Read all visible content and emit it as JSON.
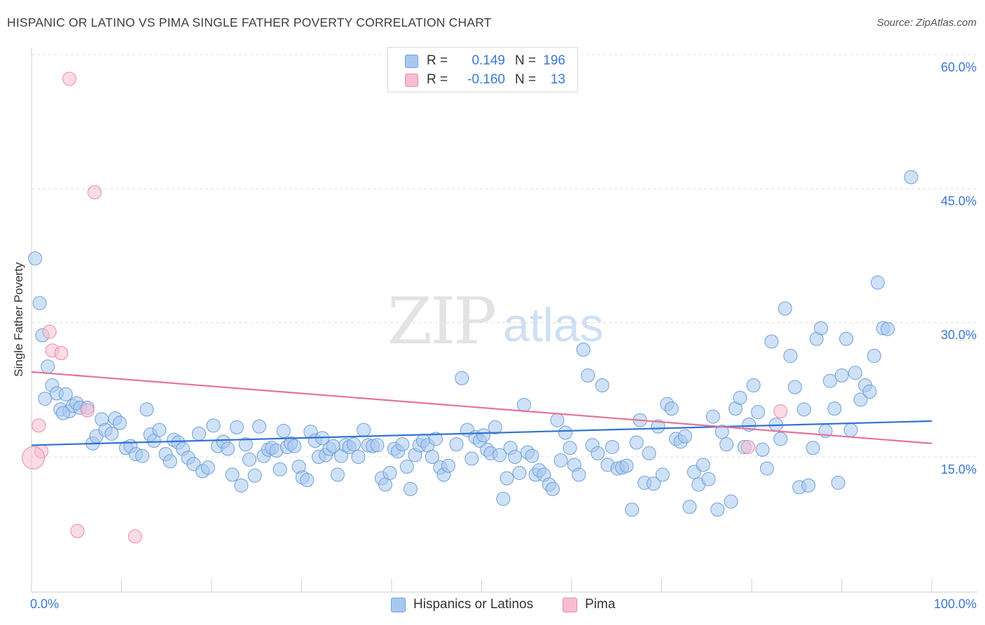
{
  "title": "HISPANIC OR LATINO VS PIMA SINGLE FATHER POVERTY CORRELATION CHART",
  "source": "Source: ZipAtlas.com",
  "watermark": {
    "zip": "ZIP",
    "atlas": "atlas"
  },
  "legend_top": [
    {
      "r_label": "R =",
      "r_value": "0.149",
      "n_label": "N =",
      "n_value": "196",
      "color": "#a8c8f0",
      "border": "#6f9fd8"
    },
    {
      "r_label": "R =",
      "r_value": "-0.160",
      "n_label": "N =",
      "n_value": "13",
      "color": "#f8bdd0",
      "border": "#e88aab"
    }
  ],
  "legend_bottom": [
    {
      "label": "Hispanics or Latinos",
      "color": "#a8c8f0",
      "border": "#6f9fd8"
    },
    {
      "label": "Pima",
      "color": "#f8bdd0",
      "border": "#e88aab"
    }
  ],
  "chart_data": {
    "type": "scatter",
    "title": "HISPANIC OR LATINO VS PIMA SINGLE FATHER POVERTY CORRELATION CHART",
    "xlabel": "",
    "ylabel": "Single Father Poverty",
    "xlim": [
      0,
      100
    ],
    "ylim": [
      0,
      61
    ],
    "x_tick_labels": [
      "0.0%",
      "100.0%"
    ],
    "y_ticks": [
      15,
      30,
      45,
      60
    ],
    "y_tick_labels": [
      "15.0%",
      "30.0%",
      "45.0%",
      "60.0%"
    ],
    "grid": "horizontal dashed",
    "legend_position": "top-center",
    "series": [
      {
        "name": "Hispanics or Latinos",
        "color": "#a8c8f0",
        "edge": "#6f9fd8",
        "trend": {
          "color": "#2f73d0",
          "y_at_x0": 16.3,
          "y_at_x100": 19.0
        },
        "points": [
          [
            0.4,
            37.2
          ],
          [
            0.9,
            32.2
          ],
          [
            1.2,
            28.6
          ],
          [
            1.8,
            25.1
          ],
          [
            2.3,
            23.0
          ],
          [
            2.8,
            22.1
          ],
          [
            3.2,
            20.3
          ],
          [
            3.8,
            22.0
          ],
          [
            4.2,
            20.1
          ],
          [
            4.6,
            20.7
          ],
          [
            5.0,
            21.0
          ],
          [
            5.4,
            20.5
          ],
          [
            6.8,
            16.5
          ],
          [
            7.2,
            17.3
          ],
          [
            7.8,
            19.2
          ],
          [
            8.2,
            18.0
          ],
          [
            8.9,
            17.6
          ],
          [
            9.3,
            19.3
          ],
          [
            9.8,
            18.8
          ],
          [
            10.5,
            16.0
          ],
          [
            11.0,
            16.2
          ],
          [
            11.6,
            15.3
          ],
          [
            12.3,
            15.1
          ],
          [
            12.8,
            20.3
          ],
          [
            13.2,
            17.5
          ],
          [
            13.6,
            16.8
          ],
          [
            14.2,
            18.0
          ],
          [
            14.9,
            15.3
          ],
          [
            15.4,
            14.5
          ],
          [
            15.8,
            16.9
          ],
          [
            16.3,
            16.6
          ],
          [
            16.8,
            15.9
          ],
          [
            17.4,
            14.9
          ],
          [
            18.0,
            14.2
          ],
          [
            18.6,
            17.6
          ],
          [
            19.0,
            13.4
          ],
          [
            19.6,
            13.8
          ],
          [
            20.2,
            18.5
          ],
          [
            20.7,
            16.2
          ],
          [
            21.3,
            16.7
          ],
          [
            21.8,
            15.9
          ],
          [
            22.3,
            13.0
          ],
          [
            22.8,
            18.3
          ],
          [
            23.3,
            11.8
          ],
          [
            23.8,
            16.4
          ],
          [
            24.2,
            14.7
          ],
          [
            24.8,
            12.9
          ],
          [
            25.3,
            18.4
          ],
          [
            25.8,
            15.1
          ],
          [
            26.3,
            15.8
          ],
          [
            26.7,
            16.0
          ],
          [
            27.2,
            15.7
          ],
          [
            27.6,
            13.6
          ],
          [
            28.0,
            17.9
          ],
          [
            28.4,
            16.1
          ],
          [
            28.8,
            16.5
          ],
          [
            29.2,
            16.2
          ],
          [
            29.7,
            13.9
          ],
          [
            30.1,
            12.7
          ],
          [
            30.6,
            12.4
          ],
          [
            31.0,
            17.8
          ],
          [
            31.5,
            16.8
          ],
          [
            31.9,
            15.0
          ],
          [
            32.3,
            17.1
          ],
          [
            32.7,
            15.2
          ],
          [
            33.1,
            15.9
          ],
          [
            33.5,
            16.2
          ],
          [
            34.0,
            13.0
          ],
          [
            34.4,
            15.1
          ],
          [
            34.9,
            16.3
          ],
          [
            35.3,
            16.1
          ],
          [
            35.8,
            16.4
          ],
          [
            36.3,
            15.0
          ],
          [
            36.9,
            18.0
          ],
          [
            37.4,
            16.3
          ],
          [
            37.9,
            16.2
          ],
          [
            38.4,
            16.3
          ],
          [
            38.9,
            12.6
          ],
          [
            39.3,
            11.9
          ],
          [
            39.8,
            13.2
          ],
          [
            40.3,
            15.9
          ],
          [
            40.7,
            15.6
          ],
          [
            41.2,
            16.4
          ],
          [
            41.7,
            13.9
          ],
          [
            42.1,
            11.4
          ],
          [
            42.6,
            15.2
          ],
          [
            43.1,
            16.3
          ],
          [
            43.5,
            16.8
          ],
          [
            44.0,
            16.3
          ],
          [
            44.5,
            15.0
          ],
          [
            44.9,
            17.0
          ],
          [
            45.4,
            13.8
          ],
          [
            45.8,
            13.0
          ],
          [
            46.3,
            14.0
          ],
          [
            47.2,
            16.4
          ],
          [
            47.8,
            23.8
          ],
          [
            48.4,
            18.0
          ],
          [
            48.9,
            14.8
          ],
          [
            49.3,
            17.2
          ],
          [
            49.8,
            16.8
          ],
          [
            50.2,
            17.4
          ],
          [
            50.6,
            15.8
          ],
          [
            51.0,
            15.4
          ],
          [
            51.5,
            18.3
          ],
          [
            52.0,
            15.2
          ],
          [
            52.4,
            10.3
          ],
          [
            52.8,
            12.6
          ],
          [
            53.2,
            16.0
          ],
          [
            53.7,
            15.0
          ],
          [
            54.2,
            13.2
          ],
          [
            54.7,
            20.8
          ],
          [
            55.1,
            15.5
          ],
          [
            55.6,
            15.1
          ],
          [
            56.0,
            13.0
          ],
          [
            56.4,
            13.5
          ],
          [
            56.9,
            13.0
          ],
          [
            57.5,
            11.9
          ],
          [
            57.9,
            11.4
          ],
          [
            58.4,
            19.1
          ],
          [
            58.8,
            14.6
          ],
          [
            59.3,
            17.7
          ],
          [
            59.8,
            16.0
          ],
          [
            60.3,
            14.1
          ],
          [
            60.8,
            13.0
          ],
          [
            61.3,
            27.0
          ],
          [
            61.8,
            24.1
          ],
          [
            62.3,
            16.3
          ],
          [
            62.9,
            15.4
          ],
          [
            63.4,
            23.0
          ],
          [
            64.0,
            14.1
          ],
          [
            64.5,
            16.1
          ],
          [
            65.1,
            13.7
          ],
          [
            65.6,
            13.8
          ],
          [
            66.1,
            14.0
          ],
          [
            66.7,
            9.1
          ],
          [
            67.2,
            16.6
          ],
          [
            67.6,
            19.1
          ],
          [
            68.1,
            12.1
          ],
          [
            68.6,
            15.4
          ],
          [
            69.1,
            12.0
          ],
          [
            69.6,
            18.4
          ],
          [
            70.1,
            13.0
          ],
          [
            70.6,
            20.9
          ],
          [
            71.1,
            20.4
          ],
          [
            71.6,
            17.0
          ],
          [
            72.1,
            16.7
          ],
          [
            72.6,
            17.3
          ],
          [
            73.1,
            9.4
          ],
          [
            73.6,
            13.3
          ],
          [
            74.1,
            11.9
          ],
          [
            74.6,
            14.1
          ],
          [
            75.2,
            12.5
          ],
          [
            75.7,
            19.5
          ],
          [
            76.2,
            9.1
          ],
          [
            76.7,
            17.8
          ],
          [
            77.2,
            16.4
          ],
          [
            77.7,
            10.0
          ],
          [
            78.2,
            20.4
          ],
          [
            78.7,
            21.6
          ],
          [
            79.2,
            16.1
          ],
          [
            79.7,
            18.6
          ],
          [
            80.2,
            23.0
          ],
          [
            80.7,
            20.0
          ],
          [
            81.2,
            15.8
          ],
          [
            81.7,
            13.7
          ],
          [
            82.2,
            27.9
          ],
          [
            82.7,
            18.6
          ],
          [
            83.2,
            17.0
          ],
          [
            83.7,
            31.6
          ],
          [
            84.3,
            26.3
          ],
          [
            84.8,
            22.8
          ],
          [
            85.3,
            11.6
          ],
          [
            85.8,
            20.3
          ],
          [
            86.3,
            11.8
          ],
          [
            86.8,
            16.0
          ],
          [
            87.2,
            28.2
          ],
          [
            87.7,
            29.4
          ],
          [
            88.2,
            17.9
          ],
          [
            88.7,
            23.5
          ],
          [
            89.2,
            20.4
          ],
          [
            89.6,
            12.1
          ],
          [
            90.0,
            24.1
          ],
          [
            90.5,
            28.2
          ],
          [
            91.0,
            18.0
          ],
          [
            91.5,
            24.4
          ],
          [
            92.1,
            21.4
          ],
          [
            92.6,
            23.0
          ],
          [
            93.1,
            22.3
          ],
          [
            93.6,
            26.3
          ],
          [
            94.0,
            34.5
          ],
          [
            94.6,
            29.4
          ],
          [
            95.1,
            29.3
          ],
          [
            97.7,
            46.3
          ],
          [
            1.5,
            21.5
          ],
          [
            3.5,
            19.9
          ],
          [
            6.2,
            20.5
          ]
        ]
      },
      {
        "name": "Pima",
        "color": "#f8bdd0",
        "edge": "#e88aab",
        "trend": {
          "color": "#e4739c",
          "y_at_x0": 24.5,
          "y_at_x100": 16.5
        },
        "points": [
          [
            4.2,
            57.3
          ],
          [
            7.0,
            44.6
          ],
          [
            2.0,
            29.0
          ],
          [
            2.3,
            26.9
          ],
          [
            3.3,
            26.6
          ],
          [
            0.8,
            18.5
          ],
          [
            1.1,
            15.6
          ],
          [
            0.2,
            14.9
          ],
          [
            5.1,
            6.7
          ],
          [
            11.5,
            6.1
          ],
          [
            6.2,
            20.2
          ],
          [
            83.2,
            20.1
          ],
          [
            79.6,
            16.1
          ]
        ]
      }
    ]
  }
}
